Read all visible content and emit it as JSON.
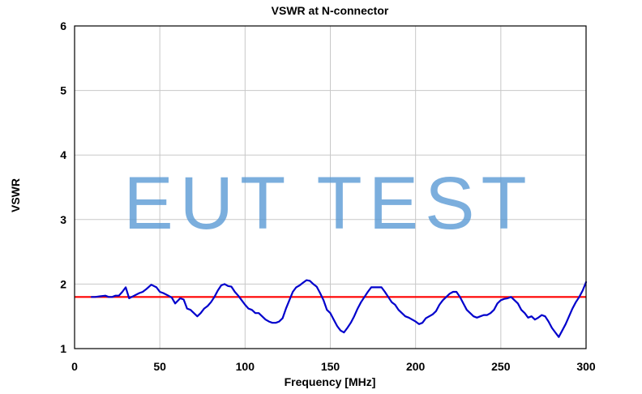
{
  "chart_data": {
    "type": "line",
    "title": "VSWR at N-connector",
    "xlabel": "Frequency [MHz]",
    "ylabel": "VSWR",
    "xlim": [
      0,
      300
    ],
    "ylim": [
      1,
      6
    ],
    "xticks": [
      0,
      50,
      100,
      150,
      200,
      250,
      300
    ],
    "yticks": [
      1,
      2,
      3,
      4,
      5,
      6
    ],
    "grid": true,
    "watermark": "EUT TEST",
    "series": [
      {
        "color": "#0000cc",
        "x": [
          10,
          12,
          15,
          18,
          20,
          22,
          24,
          26,
          28,
          30,
          32,
          35,
          38,
          40,
          42,
          45,
          48,
          50,
          52,
          55,
          57,
          59,
          62,
          64,
          66,
          68,
          70,
          72,
          74,
          76,
          78,
          80,
          82,
          84,
          86,
          88,
          90,
          92,
          94,
          96,
          98,
          100,
          102,
          104,
          106,
          108,
          110,
          112,
          114,
          116,
          118,
          120,
          122,
          124,
          126,
          128,
          130,
          132,
          134,
          136,
          138,
          140,
          142,
          144,
          146,
          148,
          150,
          152,
          154,
          156,
          158,
          160,
          162,
          164,
          166,
          168,
          170,
          172,
          174,
          176,
          178,
          180,
          182,
          184,
          186,
          188,
          190,
          192,
          194,
          196,
          198,
          200,
          202,
          204,
          206,
          208,
          210,
          212,
          214,
          216,
          218,
          220,
          222,
          224,
          226,
          228,
          230,
          232,
          234,
          236,
          238,
          240,
          242,
          244,
          246,
          248,
          250,
          252,
          254,
          256,
          258,
          260,
          262,
          264,
          266,
          268,
          270,
          272,
          274,
          276,
          278,
          280,
          282,
          284,
          286,
          288,
          290,
          292,
          294,
          296,
          298,
          300
        ],
        "y": [
          1.8,
          1.8,
          1.81,
          1.82,
          1.8,
          1.8,
          1.82,
          1.82,
          1.88,
          1.95,
          1.78,
          1.82,
          1.86,
          1.88,
          1.92,
          1.99,
          1.95,
          1.88,
          1.86,
          1.82,
          1.79,
          1.7,
          1.78,
          1.76,
          1.62,
          1.6,
          1.55,
          1.5,
          1.55,
          1.62,
          1.66,
          1.72,
          1.8,
          1.9,
          1.98,
          2.0,
          1.97,
          1.96,
          1.88,
          1.82,
          1.75,
          1.68,
          1.62,
          1.6,
          1.55,
          1.55,
          1.5,
          1.45,
          1.42,
          1.4,
          1.4,
          1.42,
          1.47,
          1.62,
          1.75,
          1.88,
          1.95,
          1.98,
          2.02,
          2.06,
          2.05,
          2.0,
          1.96,
          1.86,
          1.75,
          1.6,
          1.55,
          1.45,
          1.35,
          1.28,
          1.25,
          1.32,
          1.4,
          1.5,
          1.62,
          1.72,
          1.8,
          1.88,
          1.95,
          1.95,
          1.95,
          1.95,
          1.88,
          1.8,
          1.72,
          1.68,
          1.6,
          1.55,
          1.5,
          1.48,
          1.45,
          1.42,
          1.38,
          1.4,
          1.47,
          1.5,
          1.53,
          1.58,
          1.68,
          1.75,
          1.8,
          1.85,
          1.88,
          1.88,
          1.8,
          1.7,
          1.6,
          1.55,
          1.5,
          1.48,
          1.5,
          1.52,
          1.52,
          1.55,
          1.6,
          1.7,
          1.75,
          1.77,
          1.78,
          1.8,
          1.75,
          1.7,
          1.6,
          1.55,
          1.48,
          1.5,
          1.45,
          1.48,
          1.52,
          1.5,
          1.42,
          1.32,
          1.25,
          1.18,
          1.28,
          1.38,
          1.5,
          1.62,
          1.72,
          1.8,
          1.9,
          2.03
        ]
      }
    ],
    "reference_line": {
      "y": 1.8,
      "color": "#ff0000"
    }
  }
}
